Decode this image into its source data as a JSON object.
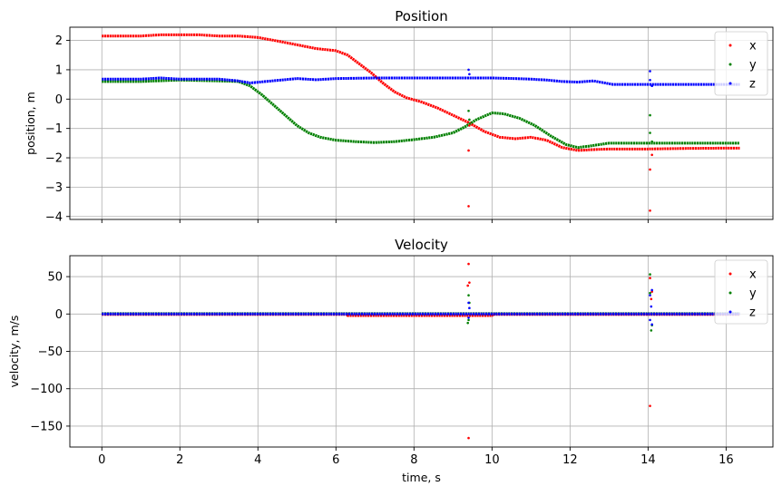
{
  "chart_data": [
    {
      "type": "scatter",
      "title": "Position",
      "xlabel": "",
      "ylabel": "position, m",
      "xlim": [
        -0.82,
        17.2
      ],
      "ylim": [
        -4.1,
        2.45
      ],
      "xticks": [
        0,
        2,
        4,
        6,
        8,
        10,
        12,
        14,
        16
      ],
      "xtick_labels": [
        "",
        "",
        "",
        "",
        "",
        "",
        "",
        "",
        ""
      ],
      "yticks": [
        2,
        1,
        0,
        -1,
        -2,
        -3,
        -4
      ],
      "ytick_labels": [
        "2",
        "1",
        "0",
        "−1",
        "−2",
        "−3",
        "−4"
      ],
      "grid": true,
      "legend": "top-right",
      "series": [
        {
          "name": "x",
          "color": "#ff0000",
          "points": [
            [
              0,
              2.15
            ],
            [
              0.5,
              2.15
            ],
            [
              1,
              2.15
            ],
            [
              1.5,
              2.19
            ],
            [
              2,
              2.19
            ],
            [
              2.5,
              2.19
            ],
            [
              3,
              2.15
            ],
            [
              3.5,
              2.15
            ],
            [
              4,
              2.1
            ],
            [
              4.5,
              1.98
            ],
            [
              5,
              1.85
            ],
            [
              5.5,
              1.72
            ],
            [
              6,
              1.65
            ],
            [
              6.3,
              1.5
            ],
            [
              6.6,
              1.2
            ],
            [
              6.9,
              0.9
            ],
            [
              7.2,
              0.55
            ],
            [
              7.5,
              0.25
            ],
            [
              7.8,
              0.05
            ],
            [
              8.2,
              -0.1
            ],
            [
              8.6,
              -0.3
            ],
            [
              9,
              -0.55
            ],
            [
              9.4,
              -0.8
            ],
            [
              9.8,
              -1.1
            ],
            [
              10.2,
              -1.3
            ],
            [
              10.6,
              -1.35
            ],
            [
              11,
              -1.3
            ],
            [
              11.4,
              -1.4
            ],
            [
              11.8,
              -1.65
            ],
            [
              12.2,
              -1.75
            ],
            [
              12.6,
              -1.72
            ],
            [
              13,
              -1.7
            ],
            [
              14,
              -1.7
            ],
            [
              15,
              -1.68
            ],
            [
              16,
              -1.67
            ],
            [
              16.35,
              -1.67
            ]
          ]
        },
        {
          "name": "y",
          "color": "#008000",
          "points": [
            [
              0,
              0.6
            ],
            [
              1,
              0.6
            ],
            [
              2,
              0.65
            ],
            [
              3,
              0.62
            ],
            [
              3.5,
              0.6
            ],
            [
              3.8,
              0.45
            ],
            [
              4.1,
              0.15
            ],
            [
              4.4,
              -0.2
            ],
            [
              4.7,
              -0.55
            ],
            [
              5,
              -0.9
            ],
            [
              5.3,
              -1.15
            ],
            [
              5.6,
              -1.3
            ],
            [
              6,
              -1.4
            ],
            [
              6.5,
              -1.45
            ],
            [
              7,
              -1.48
            ],
            [
              7.5,
              -1.45
            ],
            [
              8,
              -1.38
            ],
            [
              8.5,
              -1.3
            ],
            [
              9,
              -1.15
            ],
            [
              9.3,
              -0.95
            ],
            [
              9.6,
              -0.7
            ],
            [
              10,
              -0.47
            ],
            [
              10.3,
              -0.5
            ],
            [
              10.7,
              -0.65
            ],
            [
              11.1,
              -0.9
            ],
            [
              11.5,
              -1.25
            ],
            [
              11.9,
              -1.55
            ],
            [
              12.2,
              -1.65
            ],
            [
              12.5,
              -1.6
            ],
            [
              13,
              -1.5
            ],
            [
              14,
              -1.5
            ],
            [
              15,
              -1.5
            ],
            [
              16,
              -1.5
            ],
            [
              16.35,
              -1.5
            ]
          ]
        },
        {
          "name": "z",
          "color": "#0000ff",
          "points": [
            [
              0,
              0.68
            ],
            [
              1,
              0.68
            ],
            [
              1.5,
              0.72
            ],
            [
              2,
              0.68
            ],
            [
              3,
              0.68
            ],
            [
              3.5,
              0.62
            ],
            [
              3.8,
              0.55
            ],
            [
              4.2,
              0.6
            ],
            [
              4.6,
              0.65
            ],
            [
              5,
              0.7
            ],
            [
              5.5,
              0.66
            ],
            [
              6,
              0.7
            ],
            [
              7,
              0.72
            ],
            [
              8,
              0.72
            ],
            [
              9,
              0.72
            ],
            [
              10,
              0.72
            ],
            [
              10.6,
              0.7
            ],
            [
              11,
              0.68
            ],
            [
              11.4,
              0.65
            ],
            [
              11.8,
              0.6
            ],
            [
              12.2,
              0.58
            ],
            [
              12.6,
              0.62
            ],
            [
              13.1,
              0.5
            ],
            [
              14,
              0.5
            ],
            [
              15,
              0.5
            ],
            [
              16,
              0.5
            ],
            [
              16.35,
              0.5
            ]
          ]
        }
      ],
      "outliers": [
        {
          "series": "x",
          "points": [
            [
              9.4,
              -3.65
            ],
            [
              9.4,
              -1.75
            ],
            [
              9.42,
              -0.9
            ],
            [
              14.05,
              -3.8
            ],
            [
              14.05,
              -2.4
            ],
            [
              14.1,
              -1.9
            ]
          ]
        },
        {
          "series": "y",
          "points": [
            [
              9.4,
              -0.4
            ],
            [
              9.42,
              -0.7
            ],
            [
              14.05,
              -0.55
            ],
            [
              14.05,
              -1.15
            ],
            [
              14.1,
              -1.45
            ]
          ]
        },
        {
          "series": "z",
          "points": [
            [
              9.4,
              1.0
            ],
            [
              9.42,
              0.85
            ],
            [
              14.05,
              0.95
            ],
            [
              14.05,
              0.65
            ],
            [
              14.1,
              0.45
            ]
          ]
        }
      ]
    },
    {
      "type": "scatter",
      "title": "Velocity",
      "xlabel": "time, s",
      "ylabel": "velocity, m/s",
      "xlim": [
        -0.82,
        17.2
      ],
      "ylim": [
        -178,
        78
      ],
      "xticks": [
        0,
        2,
        4,
        6,
        8,
        10,
        12,
        14,
        16
      ],
      "xtick_labels": [
        "0",
        "2",
        "4",
        "6",
        "8",
        "10",
        "12",
        "14",
        "16"
      ],
      "yticks": [
        50,
        0,
        -50,
        -100,
        -150
      ],
      "ytick_labels": [
        "50",
        "0",
        "−50",
        "−100",
        "−150"
      ],
      "grid": true,
      "legend": "top-right",
      "series": [
        {
          "name": "x",
          "color": "#ff0000",
          "points": [
            [
              0,
              -0.5
            ],
            [
              6.3,
              -0.5
            ],
            [
              6.3,
              -2
            ],
            [
              10,
              -2
            ],
            [
              10,
              -0.5
            ],
            [
              16.35,
              -0.5
            ]
          ]
        },
        {
          "name": "y",
          "color": "#008000",
          "points": [
            [
              0,
              0.5
            ],
            [
              16.35,
              0.5
            ]
          ]
        },
        {
          "name": "z",
          "color": "#0000ff",
          "points": [
            [
              0,
              0
            ],
            [
              16.35,
              0
            ]
          ]
        }
      ],
      "outliers": [
        {
          "series": "x",
          "points": [
            [
              9.4,
              -166
            ],
            [
              9.4,
              67
            ],
            [
              9.42,
              42
            ],
            [
              9.38,
              38
            ],
            [
              14.05,
              -123
            ],
            [
              14.05,
              48
            ],
            [
              14.1,
              30
            ],
            [
              14.08,
              20
            ]
          ]
        },
        {
          "series": "y",
          "points": [
            [
              9.4,
              25
            ],
            [
              9.42,
              15
            ],
            [
              9.4,
              -8
            ],
            [
              9.38,
              -12
            ],
            [
              14.05,
              53
            ],
            [
              14.05,
              28
            ],
            [
              14.1,
              -15
            ],
            [
              14.08,
              -22
            ]
          ]
        },
        {
          "series": "z",
          "points": [
            [
              9.4,
              15
            ],
            [
              9.42,
              8
            ],
            [
              9.4,
              -5
            ],
            [
              14.05,
              25
            ],
            [
              14.1,
              32
            ],
            [
              14.08,
              10
            ],
            [
              14.05,
              -8
            ],
            [
              14.1,
              -14
            ]
          ]
        }
      ]
    }
  ]
}
